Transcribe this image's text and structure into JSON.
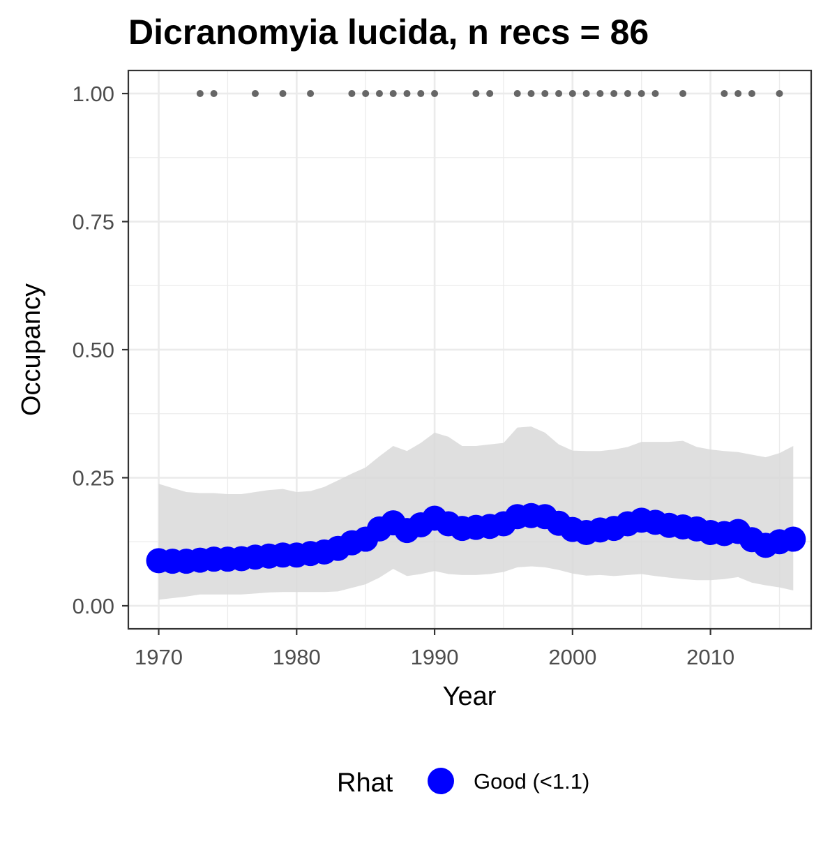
{
  "chart_data": {
    "type": "line",
    "title": "Dicranomyia lucida, n recs = 86",
    "xlabel": "Year",
    "ylabel": "Occupancy",
    "xlim": [
      1967.8,
      2017.3
    ],
    "ylim": [
      -0.045,
      1.045
    ],
    "x_ticks": [
      1970,
      1980,
      1990,
      2000,
      2010
    ],
    "x_tick_labels": [
      "1970",
      "1980",
      "1990",
      "2000",
      "2010"
    ],
    "y_ticks": [
      0,
      0.25,
      0.5,
      0.75,
      1
    ],
    "y_tick_labels": [
      "0.00",
      "0.25",
      "0.50",
      "0.75",
      "1.00"
    ],
    "grid": true,
    "x": [
      1970,
      1971,
      1972,
      1973,
      1974,
      1975,
      1976,
      1977,
      1978,
      1979,
      1980,
      1981,
      1982,
      1983,
      1984,
      1985,
      1986,
      1987,
      1988,
      1989,
      1990,
      1991,
      1992,
      1993,
      1994,
      1995,
      1996,
      1997,
      1998,
      1999,
      2000,
      2001,
      2002,
      2003,
      2004,
      2005,
      2006,
      2007,
      2008,
      2009,
      2010,
      2011,
      2012,
      2013,
      2014,
      2015,
      2016
    ],
    "series": [
      {
        "name": "Good (<1.1)",
        "color": "#0000ff",
        "values": [
          0.088,
          0.087,
          0.087,
          0.089,
          0.091,
          0.091,
          0.092,
          0.095,
          0.097,
          0.099,
          0.099,
          0.102,
          0.105,
          0.112,
          0.123,
          0.13,
          0.15,
          0.162,
          0.147,
          0.158,
          0.171,
          0.16,
          0.151,
          0.153,
          0.155,
          0.16,
          0.174,
          0.176,
          0.174,
          0.161,
          0.149,
          0.143,
          0.148,
          0.151,
          0.16,
          0.167,
          0.163,
          0.157,
          0.154,
          0.15,
          0.143,
          0.141,
          0.145,
          0.129,
          0.118,
          0.125,
          0.13
        ],
        "lower": [
          0.012,
          0.015,
          0.018,
          0.022,
          0.022,
          0.022,
          0.022,
          0.024,
          0.026,
          0.027,
          0.027,
          0.027,
          0.027,
          0.028,
          0.035,
          0.042,
          0.055,
          0.072,
          0.058,
          0.062,
          0.068,
          0.062,
          0.06,
          0.06,
          0.062,
          0.066,
          0.075,
          0.077,
          0.075,
          0.07,
          0.063,
          0.059,
          0.06,
          0.058,
          0.06,
          0.062,
          0.058,
          0.055,
          0.052,
          0.05,
          0.05,
          0.052,
          0.056,
          0.045,
          0.04,
          0.036,
          0.03
        ],
        "upper": [
          0.238,
          0.23,
          0.222,
          0.22,
          0.22,
          0.218,
          0.218,
          0.222,
          0.226,
          0.228,
          0.222,
          0.224,
          0.232,
          0.245,
          0.258,
          0.27,
          0.292,
          0.312,
          0.302,
          0.318,
          0.338,
          0.33,
          0.312,
          0.312,
          0.315,
          0.318,
          0.348,
          0.35,
          0.338,
          0.315,
          0.303,
          0.302,
          0.302,
          0.305,
          0.31,
          0.32,
          0.32,
          0.32,
          0.322,
          0.31,
          0.305,
          0.302,
          0.3,
          0.295,
          0.29,
          0.298,
          0.312
        ]
      }
    ],
    "record_years": [
      1973,
      1974,
      1977,
      1979,
      1981,
      1984,
      1985,
      1986,
      1987,
      1988,
      1989,
      1990,
      1993,
      1994,
      1996,
      1997,
      1998,
      1999,
      2000,
      2001,
      2002,
      2003,
      2004,
      2005,
      2006,
      2008,
      2011,
      2012,
      2013,
      2015
    ],
    "record_value": 1.0,
    "record_color": "#666666",
    "ribbon_color": "#d9d9d9",
    "legend": {
      "title": "Rhat",
      "label": "Good (<1.1)",
      "color": "#0000ff",
      "position": "bottom"
    }
  }
}
